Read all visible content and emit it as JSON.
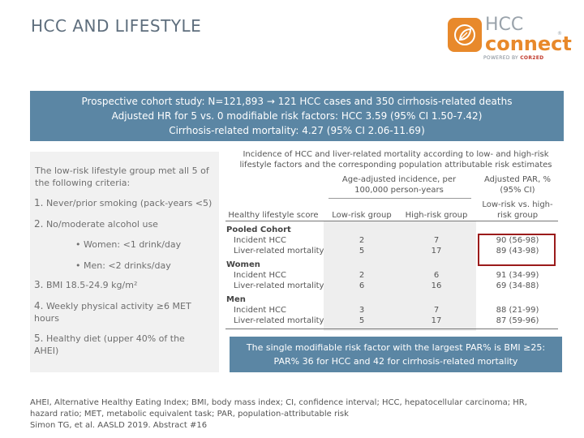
{
  "title": "HCC AND LIFESTYLE",
  "logo": {
    "hcc": "HCC",
    "connect": "connect",
    "reg": "®",
    "powered_prefix": "POWERED BY ",
    "powered_brand": "COR2ED"
  },
  "banner": {
    "line1": "Prospective cohort study: N=121,893 → 121 HCC cases and 350 cirrhosis-related deaths",
    "line2": "Adjusted HR for 5 vs. 0 modifiable risk factors: HCC 3.59 (95% CI 1.50-7.42)",
    "line3": "Cirrhosis-related mortality: 4.27 (95% CI 2.06-11.69)"
  },
  "criteria": {
    "intro": "The low-risk lifestyle group met all 5 of the following criteria:",
    "items": [
      {
        "num": "1.",
        "text": "Never/prior smoking (pack-years <5)"
      },
      {
        "num": "2.",
        "text": "No/moderate alcohol use"
      },
      {
        "num": "3.",
        "text": "BMI 18.5-24.9 kg/m²"
      },
      {
        "num": "4.",
        "text": "Weekly physical activity ≥6 MET hours"
      },
      {
        "num": "5.",
        "text": "Healthy diet (upper 40% of the AHEI)"
      }
    ],
    "sub_items": [
      "•  Women: <1 drink/day",
      "•  Men: <2 drinks/day"
    ]
  },
  "table": {
    "caption": "Incidence of HCC and liver-related mortality according to low- and high-risk lifestyle factors and the corresponding population attributable risk estimates",
    "group_header_incidence": "Age-adjusted incidence, per 100,000 person-years",
    "group_header_par": "Adjusted PAR, % (95% CI)",
    "col_score": "Healthy lifestyle score",
    "col_low": "Low-risk group",
    "col_high": "High-risk group",
    "col_par": "Low-risk vs. high-risk group",
    "groups": [
      {
        "name": "Pooled Cohort",
        "rows": [
          {
            "label": "Incident HCC",
            "low": "2",
            "high": "7",
            "par": "90 (56-98)"
          },
          {
            "label": "Liver-related mortality",
            "low": "5",
            "high": "17",
            "par": "89 (43-98)"
          }
        ]
      },
      {
        "name": "Women",
        "rows": [
          {
            "label": "Incident HCC",
            "low": "2",
            "high": "6",
            "par": "91 (34-99)"
          },
          {
            "label": "Liver-related mortality",
            "low": "6",
            "high": "16",
            "par": "69 (34-88)"
          }
        ]
      },
      {
        "name": "Men",
        "rows": [
          {
            "label": "Incident HCC",
            "low": "3",
            "high": "7",
            "par": "88 (21-99)"
          },
          {
            "label": "Liver-related mortality",
            "low": "5",
            "high": "17",
            "par": "87 (59-96)"
          }
        ]
      }
    ]
  },
  "note": {
    "line1": "The single modifiable risk factor with the largest PAR% is BMI ≥25:",
    "line2": "PAR% 36 for HCC and 42 for cirrhosis-related mortality"
  },
  "footer": {
    "line1": "AHEI, Alternative Healthy Eating Index; BMI, body mass index; CI, confidence interval; HCC, hepatocellular carcinoma; HR,",
    "line2": "hazard ratio; MET, metabolic equivalent task; PAR, population-attributable risk",
    "line3": "Simon TG, et al. AASLD 2019. Abstract #16"
  },
  "colors": {
    "banner": "#5b86a4",
    "accent": "#e8892b",
    "highlight": "#9b1b1b"
  }
}
